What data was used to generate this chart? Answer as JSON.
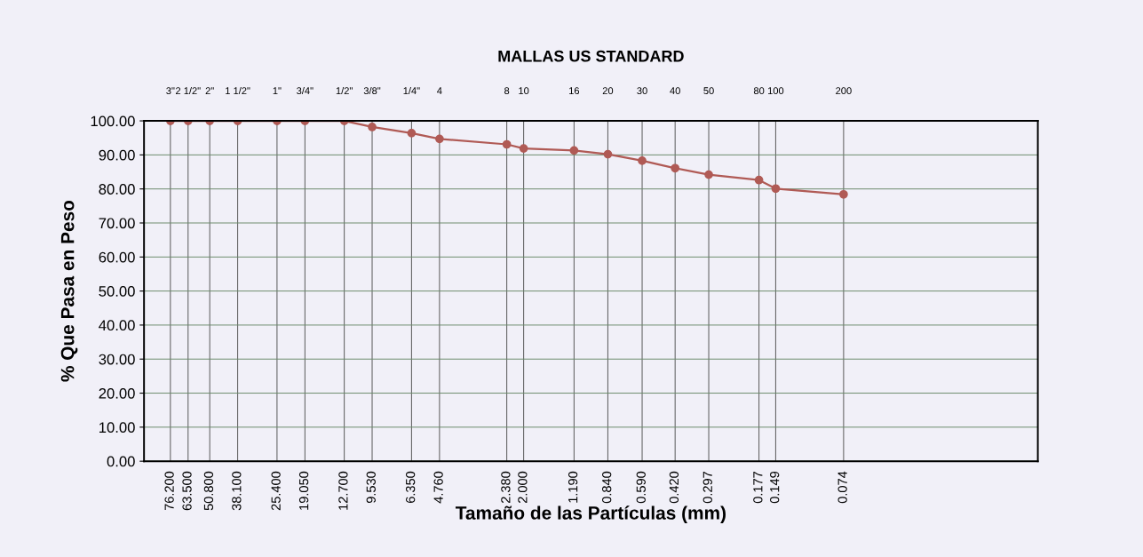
{
  "chart_data": {
    "type": "line",
    "x2label": "MALLAS US STANDARD",
    "xlabel": "Tamaño de las Partículas (mm)",
    "ylabel": "% Que Pasa en Peso",
    "x": [
      76.2,
      63.5,
      50.8,
      38.1,
      25.4,
      19.05,
      12.7,
      9.53,
      6.35,
      4.76,
      2.38,
      2.0,
      1.19,
      0.84,
      0.59,
      0.42,
      0.297,
      0.177,
      0.149,
      0.074
    ],
    "series": [
      {
        "color": "#b05a55",
        "values": [
          100,
          100,
          100,
          100,
          100,
          100,
          100,
          98.2,
          96.4,
          94.7,
          93.1,
          91.9,
          91.3,
          90.2,
          88.3,
          86.1,
          84.2,
          82.6,
          80.1,
          78.4
        ]
      }
    ],
    "log": "x",
    "xlim": [
      100,
      0.01
    ],
    "xticks": [
      {
        "value": 76.2,
        "label": "76.200"
      },
      {
        "value": 63.5,
        "label": "63.500"
      },
      {
        "value": 50.8,
        "label": "50.800"
      },
      {
        "value": 38.1,
        "label": "38.100"
      },
      {
        "value": 25.4,
        "label": "25.400"
      },
      {
        "value": 19.05,
        "label": "19.050"
      },
      {
        "value": 12.7,
        "label": "12.700"
      },
      {
        "value": 9.53,
        "label": "9.530"
      },
      {
        "value": 6.35,
        "label": "6.350"
      },
      {
        "value": 4.76,
        "label": "4.760"
      },
      {
        "value": 2.38,
        "label": "2.380"
      },
      {
        "value": 2.0,
        "label": "2.000"
      },
      {
        "value": 1.19,
        "label": "1.190"
      },
      {
        "value": 0.84,
        "label": "0.840"
      },
      {
        "value": 0.59,
        "label": "0.590"
      },
      {
        "value": 0.42,
        "label": "0.420"
      },
      {
        "value": 0.297,
        "label": "0.297"
      },
      {
        "value": 0.177,
        "label": "0.177"
      },
      {
        "value": 0.149,
        "label": "0.149"
      },
      {
        "value": 0.074,
        "label": "0.074"
      }
    ],
    "annotations": [
      "3\"",
      "2 1/2\"",
      "2\"",
      "1 1/2\"",
      "1\"",
      "3/4\"",
      "1/2\"",
      "3/8\"",
      "1/4\"",
      "4",
      "8",
      "10",
      "16",
      "20",
      "30",
      "40",
      "50",
      "80",
      "100",
      "200"
    ],
    "ylim": [
      0,
      100
    ],
    "yticks": [
      {
        "value": 0,
        "label": "0.00"
      },
      {
        "value": 10,
        "label": "10.00"
      },
      {
        "value": 20,
        "label": "20.00"
      },
      {
        "value": 30,
        "label": "30.00"
      },
      {
        "value": 40,
        "label": "40.00"
      },
      {
        "value": 50,
        "label": "50.00"
      },
      {
        "value": 60,
        "label": "60.00"
      },
      {
        "value": 70,
        "label": "70.00"
      },
      {
        "value": 80,
        "label": "80.00"
      },
      {
        "value": 90,
        "label": "90.00"
      },
      {
        "value": 100,
        "label": "100.00"
      }
    ],
    "grid": true,
    "marker": "circle",
    "line_style": "solid"
  }
}
